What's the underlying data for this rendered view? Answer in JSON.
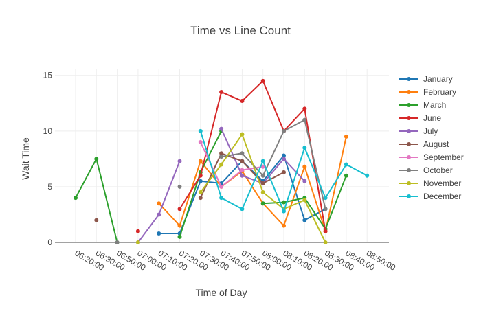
{
  "chart_data": {
    "type": "line",
    "title": "Time vs Line Count",
    "xlabel": "Time of Day",
    "ylabel": "Wait Time",
    "x": [
      "06:20:00",
      "06:30:00",
      "06:50:00",
      "07:00:00",
      "07:10:00",
      "07:20:00",
      "07:30:00",
      "07:40:00",
      "07:50:00",
      "08:00:00",
      "08:10:00",
      "08:20:00",
      "08:30:00",
      "08:40:00",
      "08:50:00"
    ],
    "ylim": [
      0,
      15.6
    ],
    "yticks": [
      0,
      5,
      10,
      15
    ],
    "grid": true,
    "legend_position": "right",
    "series": [
      {
        "name": "January",
        "color": "#1f77b4",
        "values": [
          null,
          null,
          null,
          null,
          0.8,
          0.8,
          5.5,
          5.3,
          7.3,
          5.5,
          7.8,
          2.0,
          3.0,
          null,
          null
        ]
      },
      {
        "name": "February",
        "color": "#ff7f0e",
        "values": [
          null,
          null,
          null,
          null,
          3.5,
          1.5,
          7.3,
          5.0,
          6.4,
          3.5,
          1.5,
          6.8,
          1.0,
          9.5,
          null
        ]
      },
      {
        "name": "March",
        "color": "#2ca02c",
        "values": [
          4.0,
          7.5,
          0.0,
          null,
          null,
          0.5,
          6.3,
          10.0,
          null,
          3.5,
          3.6,
          4.0,
          1.2,
          6.0,
          null
        ]
      },
      {
        "name": "June",
        "color": "#d62728",
        "values": [
          null,
          null,
          null,
          1.0,
          null,
          3.0,
          6.0,
          13.5,
          12.7,
          14.5,
          10.0,
          12.0,
          1.0,
          null,
          null
        ]
      },
      {
        "name": "July",
        "color": "#9467bd",
        "values": [
          null,
          null,
          null,
          0.0,
          2.5,
          7.3,
          null,
          10.2,
          6.0,
          5.3,
          7.5,
          5.5,
          null,
          null,
          null
        ]
      },
      {
        "name": "August",
        "color": "#8c564b",
        "values": [
          null,
          2.0,
          null,
          null,
          null,
          null,
          4.0,
          8.0,
          7.3,
          5.3,
          6.3,
          null,
          null,
          null,
          null
        ]
      },
      {
        "name": "September",
        "color": "#e377c2",
        "values": [
          null,
          null,
          null,
          null,
          null,
          null,
          9.0,
          5.0,
          6.5,
          6.8,
          null,
          null,
          null,
          null,
          null
        ]
      },
      {
        "name": "October",
        "color": "#7f7f7f",
        "values": [
          null,
          null,
          0.0,
          null,
          null,
          5.0,
          null,
          7.7,
          8.0,
          6.0,
          10.0,
          11.0,
          3.0,
          null,
          null
        ]
      },
      {
        "name": "November",
        "color": "#bcbd22",
        "values": [
          null,
          null,
          null,
          0.0,
          null,
          null,
          4.5,
          7.0,
          9.7,
          4.5,
          3.0,
          3.8,
          0.0,
          null,
          null
        ]
      },
      {
        "name": "December",
        "color": "#17becf",
        "values": [
          null,
          null,
          null,
          null,
          null,
          null,
          10.0,
          4.0,
          3.0,
          7.3,
          2.8,
          8.5,
          4.0,
          7.0,
          6.0
        ]
      }
    ]
  }
}
